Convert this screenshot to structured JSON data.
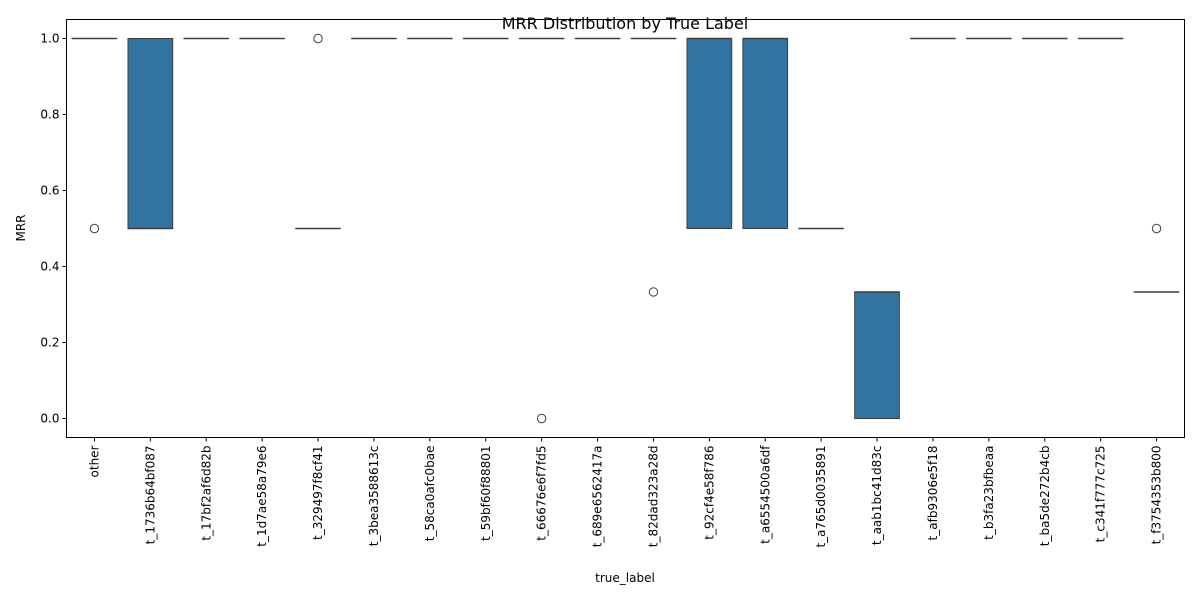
{
  "chart_data": {
    "type": "box",
    "title": "MRR Distribution by True Label",
    "xlabel": "true_label",
    "ylabel": "MRR",
    "ylim": [
      -0.05,
      1.05
    ],
    "yticks": [
      0.0,
      0.2,
      0.4,
      0.6,
      0.8,
      1.0
    ],
    "ytick_labels": [
      "0.0",
      "0.2",
      "0.4",
      "0.6",
      "0.8",
      "1.0"
    ],
    "grid": false,
    "box_color": "#3274a1",
    "categories": [
      "other",
      "t_1736b64bf087",
      "t_17bf2af6d82b",
      "t_1d7ae58a79e6",
      "t_329497f8cf41",
      "t_3bea3588613c",
      "t_58ca0afc0bae",
      "t_59bf60f88801",
      "t_66676e6f7fd5",
      "t_689e6562417a",
      "t_82dad323a28d",
      "t_92cf4e58f786",
      "t_a6554500a6df",
      "t_a765d0035891",
      "t_aab1bc41d83c",
      "t_afb9306e5f18",
      "t_b3fa23bfbeaa",
      "t_ba5de272b4cb",
      "t_c341f777c725",
      "t_f3754353b800"
    ],
    "boxes": [
      {
        "q1": 1.0,
        "median": 1.0,
        "q3": 1.0,
        "whislo": 1.0,
        "whishi": 1.0,
        "fliers": [
          0.5
        ]
      },
      {
        "q1": 0.5,
        "median": 0.5,
        "q3": 1.0,
        "whislo": 0.5,
        "whishi": 1.0,
        "fliers": []
      },
      {
        "q1": 1.0,
        "median": 1.0,
        "q3": 1.0,
        "whislo": 1.0,
        "whishi": 1.0,
        "fliers": []
      },
      {
        "q1": 1.0,
        "median": 1.0,
        "q3": 1.0,
        "whislo": 1.0,
        "whishi": 1.0,
        "fliers": []
      },
      {
        "q1": 0.5,
        "median": 0.5,
        "q3": 0.5,
        "whislo": 0.5,
        "whishi": 0.5,
        "fliers": [
          1.0
        ]
      },
      {
        "q1": 1.0,
        "median": 1.0,
        "q3": 1.0,
        "whislo": 1.0,
        "whishi": 1.0,
        "fliers": []
      },
      {
        "q1": 1.0,
        "median": 1.0,
        "q3": 1.0,
        "whislo": 1.0,
        "whishi": 1.0,
        "fliers": []
      },
      {
        "q1": 1.0,
        "median": 1.0,
        "q3": 1.0,
        "whislo": 1.0,
        "whishi": 1.0,
        "fliers": []
      },
      {
        "q1": 1.0,
        "median": 1.0,
        "q3": 1.0,
        "whislo": 1.0,
        "whishi": 1.0,
        "fliers": [
          0.0
        ]
      },
      {
        "q1": 1.0,
        "median": 1.0,
        "q3": 1.0,
        "whislo": 1.0,
        "whishi": 1.0,
        "fliers": []
      },
      {
        "q1": 1.0,
        "median": 1.0,
        "q3": 1.0,
        "whislo": 1.0,
        "whishi": 1.0,
        "fliers": [
          0.333
        ]
      },
      {
        "q1": 0.5,
        "median": 1.0,
        "q3": 1.0,
        "whislo": 0.5,
        "whishi": 1.0,
        "fliers": []
      },
      {
        "q1": 0.5,
        "median": 1.0,
        "q3": 1.0,
        "whislo": 0.5,
        "whishi": 1.0,
        "fliers": []
      },
      {
        "q1": 0.5,
        "median": 0.5,
        "q3": 0.5,
        "whislo": 0.5,
        "whishi": 0.5,
        "fliers": []
      },
      {
        "q1": 0.0,
        "median": 0.333,
        "q3": 0.333,
        "whislo": 0.0,
        "whishi": 0.333,
        "fliers": []
      },
      {
        "q1": 1.0,
        "median": 1.0,
        "q3": 1.0,
        "whislo": 1.0,
        "whishi": 1.0,
        "fliers": []
      },
      {
        "q1": 1.0,
        "median": 1.0,
        "q3": 1.0,
        "whislo": 1.0,
        "whishi": 1.0,
        "fliers": []
      },
      {
        "q1": 1.0,
        "median": 1.0,
        "q3": 1.0,
        "whislo": 1.0,
        "whishi": 1.0,
        "fliers": []
      },
      {
        "q1": 1.0,
        "median": 1.0,
        "q3": 1.0,
        "whislo": 1.0,
        "whishi": 1.0,
        "fliers": []
      },
      {
        "q1": 0.333,
        "median": 0.333,
        "q3": 0.333,
        "whislo": 0.333,
        "whishi": 0.333,
        "fliers": [
          0.5
        ]
      }
    ]
  }
}
